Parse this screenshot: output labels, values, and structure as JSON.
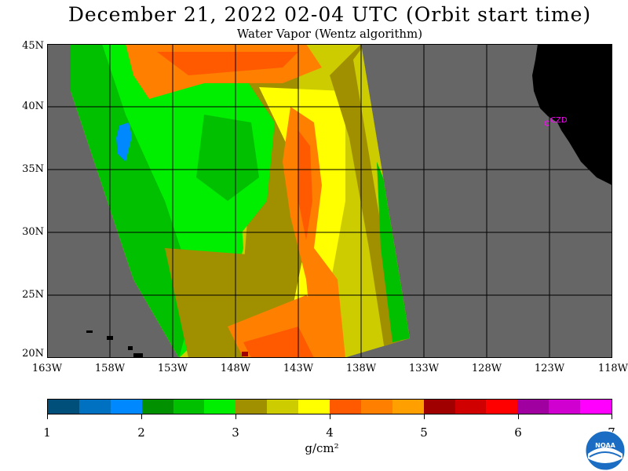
{
  "title": "December 21, 2022  02-04 UTC  (Orbit start time)",
  "subtitle": "Water Vapor (Wentz algorithm)",
  "station_label": "CZD",
  "y_ticks": [
    "45N",
    "40N",
    "35N",
    "30N",
    "25N",
    "20N"
  ],
  "x_ticks": [
    "163W",
    "158W",
    "153W",
    "148W",
    "143W",
    "138W",
    "133W",
    "128W",
    "123W",
    "118W"
  ],
  "colorbar": {
    "ticks": [
      "1",
      "2",
      "3",
      "4",
      "5",
      "6",
      "7"
    ],
    "units": "g/cm²",
    "colors": [
      "#004e7a",
      "#0070c0",
      "#0088ff",
      "#009000",
      "#00c000",
      "#00ee00",
      "#a09000",
      "#cccc00",
      "#ffff00",
      "#ff5a00",
      "#ff7f00",
      "#ffa000",
      "#a00000",
      "#d00000",
      "#ff0000",
      "#a000a0",
      "#d000d0",
      "#ff00ff"
    ]
  },
  "colors": {
    "no_data": "#666666",
    "land": "#000000",
    "station": "#ff00ff"
  }
}
